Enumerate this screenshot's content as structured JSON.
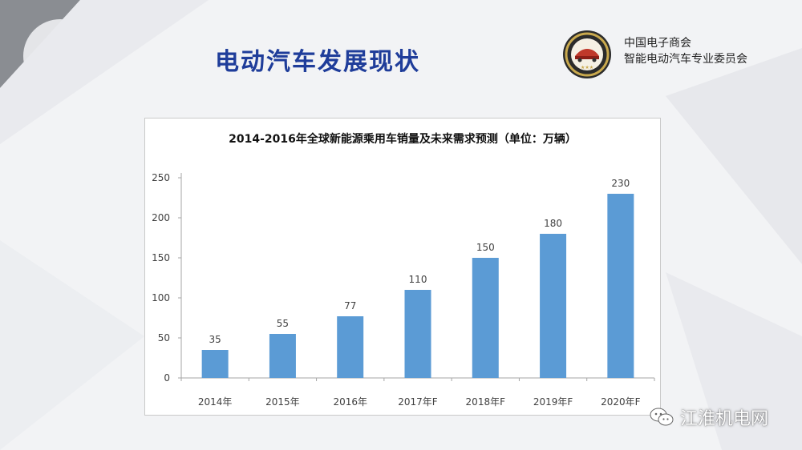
{
  "slide": {
    "title": "电动汽车发展现状"
  },
  "organization": {
    "line1": "中国电子商会",
    "line2": "智能电动汽车专业委员会"
  },
  "watermark": {
    "text": "江淮机电网",
    "icon": "wechat-icon"
  },
  "colors": {
    "bar": "#5b9bd5",
    "title": "#1f3d9a",
    "axis": "#a6a6a6"
  },
  "chart_data": {
    "type": "bar",
    "title": "2014-2016年全球新能源乘用车销量及未来需求预测（单位：万辆）",
    "categories": [
      "2014年",
      "2015年",
      "2016年",
      "2017年F",
      "2018年F",
      "2019年F",
      "2020年F"
    ],
    "values": [
      35,
      55,
      77,
      110,
      150,
      180,
      230
    ],
    "data_labels": [
      "35",
      "55",
      "77",
      "110",
      "150",
      "180",
      "230"
    ],
    "yticks": [
      0,
      50,
      100,
      150,
      200,
      250
    ],
    "ytick_labels": [
      "0",
      "50",
      "100",
      "150",
      "200",
      "250"
    ],
    "ylim": [
      0,
      250
    ],
    "grid": false,
    "legend": "none"
  }
}
